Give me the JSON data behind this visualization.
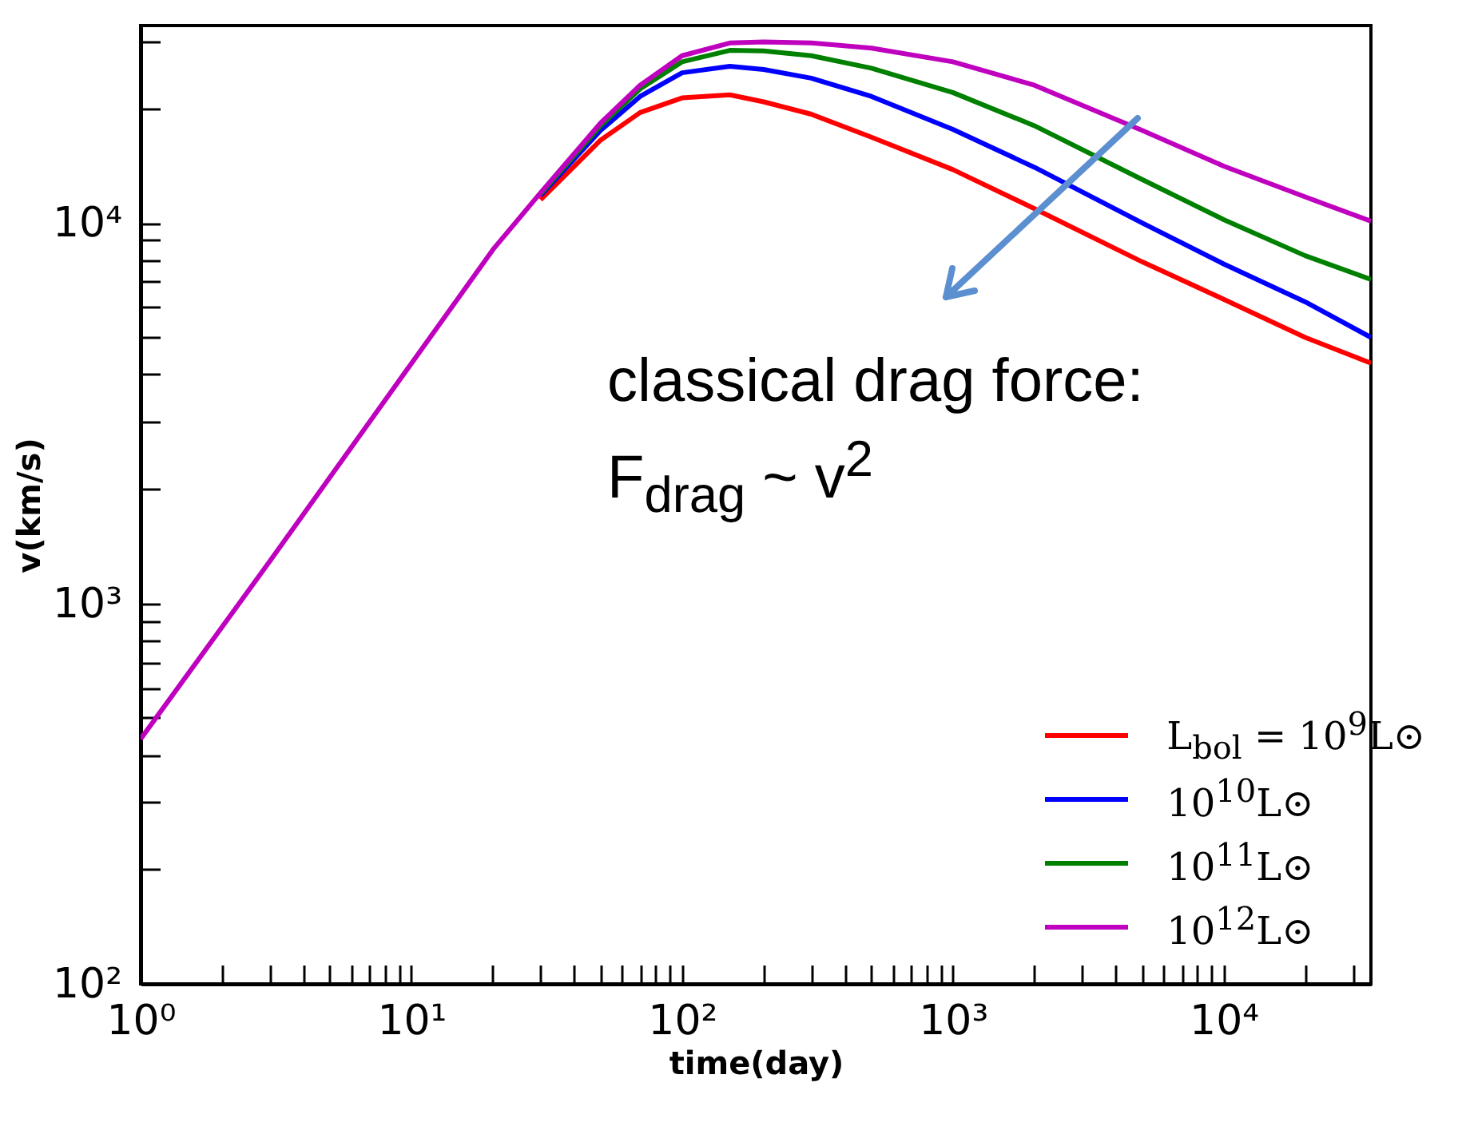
{
  "chart_data": {
    "type": "line",
    "xlabel": "time(day)",
    "ylabel": "v(km/s)",
    "log": "xy",
    "xlim": [
      1,
      35000
    ],
    "ylim": [
      100,
      33000
    ],
    "xticks": [
      {
        "value": 1,
        "label": "10⁰"
      },
      {
        "value": 2,
        "label": null
      },
      {
        "value": 3,
        "label": null
      },
      {
        "value": 4,
        "label": null
      },
      {
        "value": 5,
        "label": null
      },
      {
        "value": 6,
        "label": null
      },
      {
        "value": 7,
        "label": null
      },
      {
        "value": 8,
        "label": null
      },
      {
        "value": 9,
        "label": null
      },
      {
        "value": 10,
        "label": "10¹"
      },
      {
        "value": 20,
        "label": null
      },
      {
        "value": 30,
        "label": null
      },
      {
        "value": 40,
        "label": null
      },
      {
        "value": 50,
        "label": null
      },
      {
        "value": 60,
        "label": null
      },
      {
        "value": 70,
        "label": null
      },
      {
        "value": 80,
        "label": null
      },
      {
        "value": 90,
        "label": null
      },
      {
        "value": 100,
        "label": "10²"
      },
      {
        "value": 200,
        "label": null
      },
      {
        "value": 300,
        "label": null
      },
      {
        "value": 400,
        "label": null
      },
      {
        "value": 500,
        "label": null
      },
      {
        "value": 600,
        "label": null
      },
      {
        "value": 700,
        "label": null
      },
      {
        "value": 800,
        "label": null
      },
      {
        "value": 900,
        "label": null
      },
      {
        "value": 1000,
        "label": "10³"
      },
      {
        "value": 2000,
        "label": null
      },
      {
        "value": 3000,
        "label": null
      },
      {
        "value": 4000,
        "label": null
      },
      {
        "value": 5000,
        "label": null
      },
      {
        "value": 6000,
        "label": null
      },
      {
        "value": 7000,
        "label": null
      },
      {
        "value": 8000,
        "label": null
      },
      {
        "value": 9000,
        "label": null
      },
      {
        "value": 10000,
        "label": "10⁴"
      },
      {
        "value": 20000,
        "label": null
      },
      {
        "value": 30000,
        "label": null
      }
    ],
    "yticks": [
      {
        "value": 100,
        "label": "10²"
      },
      {
        "value": 200,
        "label": null
      },
      {
        "value": 300,
        "label": null
      },
      {
        "value": 400,
        "label": null
      },
      {
        "value": 500,
        "label": null
      },
      {
        "value": 600,
        "label": null
      },
      {
        "value": 700,
        "label": null
      },
      {
        "value": 800,
        "label": null
      },
      {
        "value": 900,
        "label": null
      },
      {
        "value": 1000,
        "label": "10³"
      },
      {
        "value": 2000,
        "label": null
      },
      {
        "value": 3000,
        "label": null
      },
      {
        "value": 4000,
        "label": null
      },
      {
        "value": 5000,
        "label": null
      },
      {
        "value": 6000,
        "label": null
      },
      {
        "value": 7000,
        "label": null
      },
      {
        "value": 8000,
        "label": null
      },
      {
        "value": 9000,
        "label": null
      },
      {
        "value": 10000,
        "label": "10⁴"
      },
      {
        "value": 20000,
        "label": null
      },
      {
        "value": 30000,
        "label": null
      }
    ],
    "grid": false,
    "legend": "bottom right",
    "line_style": "solid",
    "x": [
      1,
      3,
      10,
      20,
      30,
      50,
      70,
      100,
      150,
      200,
      300,
      500,
      1000,
      2000,
      5000,
      10000,
      20000,
      35000
    ],
    "series": [
      {
        "name": "L$_{bol}$ = 10$^{9}$L⊙",
        "color": "#ff0000",
        "values": [
          null,
          null,
          null,
          null,
          11500,
          16500,
          19500,
          21300,
          21700,
          20800,
          19300,
          16800,
          13800,
          10900,
          7900,
          6300,
          5000,
          4280
        ]
      },
      {
        "name": "10$^{10}$L⊙",
        "color": "#0000ff",
        "values": [
          null,
          null,
          null,
          null,
          11800,
          17500,
          21500,
          24800,
          25800,
          25300,
          24000,
          21500,
          17600,
          14000,
          10000,
          7800,
          6200,
          5000
        ]
      },
      {
        "name": "10$^{11}$L⊙",
        "color": "#008000",
        "values": [
          null,
          null,
          null,
          null,
          11900,
          18000,
          22500,
          26500,
          28400,
          28300,
          27500,
          25500,
          22000,
          18000,
          13000,
          10200,
          8200,
          7100
        ]
      },
      {
        "name": "10$^{12}$L⊙",
        "color": "#bf00bf",
        "values": [
          440,
          1290,
          4270,
          8500,
          12000,
          18300,
          23000,
          27500,
          29700,
          29900,
          29700,
          28800,
          26500,
          23000,
          17500,
          14100,
          11700,
          10100
        ]
      }
    ],
    "annotations": [
      "classical drag force:",
      "F$_{drag}$ ~ v$^{2}$"
    ]
  }
}
